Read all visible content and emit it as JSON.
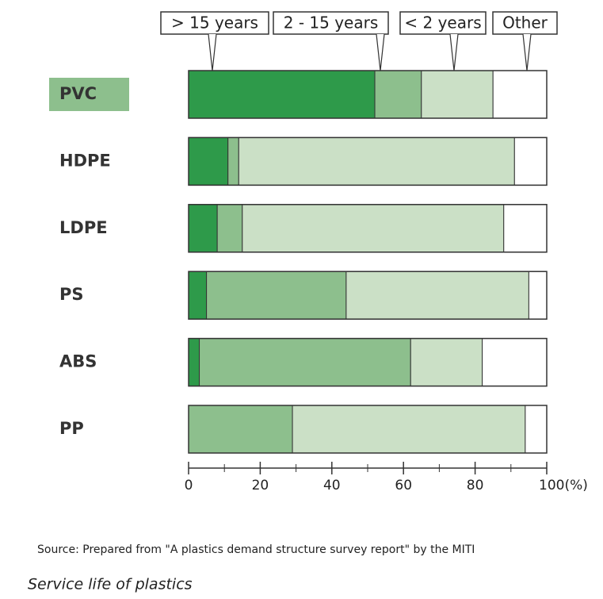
{
  "chart_data": {
    "type": "stacked-bar-horizontal",
    "title": "Service life of plastics",
    "source": "Source: Prepared from \"A plastics demand structure survey report\"   by the MITI",
    "categories": [
      "PVC",
      "HDPE",
      "LDPE",
      "PS",
      "ABS",
      "PP"
    ],
    "series": [
      {
        "name": "> 15 years",
        "color": "#2e9a4a",
        "values": [
          52,
          11,
          8,
          5,
          3,
          0
        ]
      },
      {
        "name": "2 - 15 years",
        "color": "#8dbf8d",
        "values": [
          13,
          3,
          7,
          39,
          59,
          29
        ]
      },
      {
        "name": "< 2 years",
        "color": "#cbe0c6",
        "values": [
          20,
          77,
          73,
          51,
          20,
          65
        ]
      },
      {
        "name": "Other",
        "color": "#ffffff",
        "values": [
          15,
          9,
          12,
          5,
          18,
          6
        ]
      }
    ],
    "xlim": [
      0,
      100
    ],
    "xticks": [
      0,
      20,
      40,
      60,
      80,
      {
        "value": 100,
        "label": "100(%)"
      }
    ],
    "minor_xticks": [
      10,
      30,
      50,
      70,
      90
    ]
  }
}
